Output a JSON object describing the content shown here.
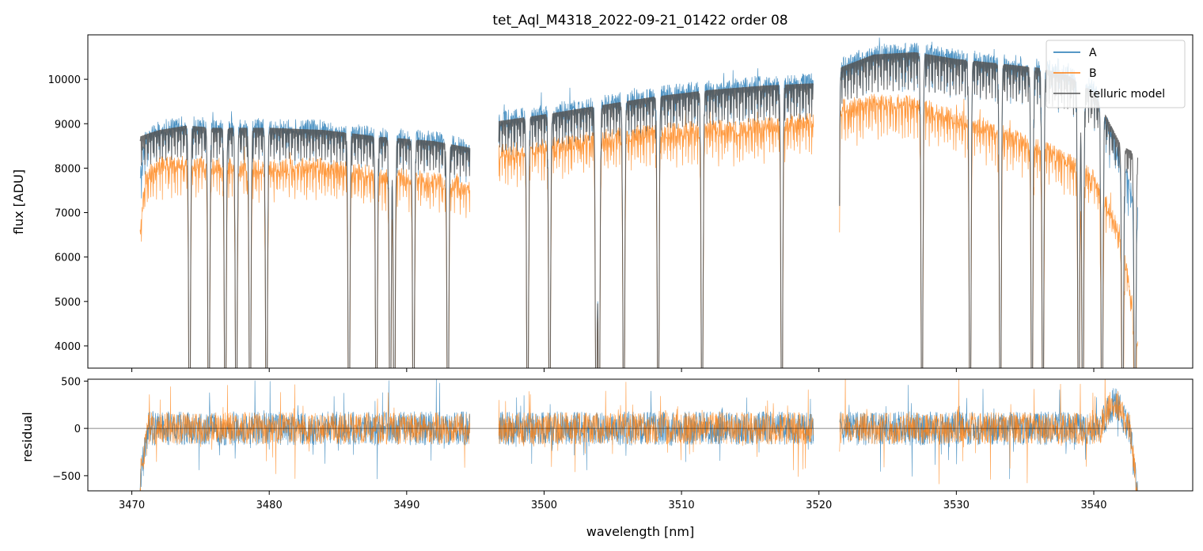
{
  "chart_data": [
    {
      "panel": "top",
      "type": "line",
      "title": "tet_Aql_M4318_2022-09-21_01422  order 08",
      "xlabel": "",
      "ylabel": "flux [ADU]",
      "xlim": [
        3466.8,
        3547.2
      ],
      "ylim": [
        3500,
        11000
      ],
      "yticks": [
        4000,
        5000,
        6000,
        7000,
        8000,
        9000,
        10000
      ],
      "xticks": [
        3470,
        3480,
        3490,
        3500,
        3510,
        3520,
        3530,
        3540
      ],
      "gaps": [
        [
          3494.7,
          3496.6
        ],
        [
          3519.7,
          3521.4
        ]
      ],
      "absorption_lines": [
        3474.2,
        3475.6,
        3476.8,
        3477.6,
        3478.6,
        3479.8,
        3485.8,
        3487.8,
        3488.8,
        3489.1,
        3490.5,
        3493.0,
        3498.8,
        3500.4,
        3503.8,
        3504.0,
        3505.8,
        3508.3,
        3511.5,
        3517.3,
        3521.4,
        3527.5,
        3531.0,
        3533.2,
        3535.5,
        3536.3,
        3538.9,
        3539.2,
        3540.6,
        3542.1,
        3543.0
      ],
      "legend": {
        "position": "top-right",
        "entries": [
          "A",
          "B",
          "telluric model"
        ]
      },
      "series": [
        {
          "name": "A",
          "color": "#1f77b4",
          "segments": [
            {
              "x": [
                3470.6,
                3471.0,
                3472.0,
                3474.0,
                3476.0,
                3480.0,
                3484.0,
                3488.0,
                3492.0,
                3494.6
              ],
              "y": [
                7800,
                8700,
                8900,
                9000,
                8950,
                8950,
                8900,
                8750,
                8650,
                8500
              ]
            },
            {
              "x": [
                3496.7,
                3500.0,
                3504.0,
                3508.0,
                3512.0,
                3516.0,
                3519.6
              ],
              "y": [
                9100,
                9250,
                9450,
                9650,
                9800,
                9900,
                9950
              ]
            },
            {
              "x": [
                3521.5,
                3524.0,
                3527.0,
                3530.0,
                3533.0,
                3536.0,
                3538.0,
                3540.0,
                3542.0,
                3543.2
              ],
              "y": [
                10300,
                10600,
                10650,
                10500,
                10400,
                10300,
                10150,
                9800,
                8200,
                7000
              ]
            }
          ]
        },
        {
          "name": "B",
          "color": "#ff7f0e",
          "segments": [
            {
              "x": [
                3470.6,
                3471.0,
                3472.0,
                3474.0,
                3476.0,
                3480.0,
                3484.0,
                3488.0,
                3492.0,
                3494.6
              ],
              "y": [
                6600,
                7800,
                8100,
                8150,
                8050,
                8050,
                8050,
                7850,
                7750,
                7600
              ]
            },
            {
              "x": [
                3496.7,
                3500.0,
                3504.0,
                3508.0,
                3512.0,
                3516.0,
                3519.6
              ],
              "y": [
                8350,
                8500,
                8700,
                8850,
                8900,
                8950,
                9100
              ]
            },
            {
              "x": [
                3521.5,
                3524.0,
                3527.0,
                3530.0,
                3533.0,
                3536.0,
                3538.0,
                3540.0,
                3542.0,
                3543.2
              ],
              "y": [
                9350,
                9500,
                9450,
                9150,
                8850,
                8500,
                8200,
                7800,
                6500,
                4200
              ]
            }
          ]
        },
        {
          "name": "telluric model",
          "color": "#555555",
          "segments": [
            {
              "x": [
                3470.6,
                3471.0,
                3472.0,
                3474.0,
                3476.0,
                3480.0,
                3484.0,
                3488.0,
                3492.0,
                3494.6
              ],
              "y": [
                8700,
                8750,
                8850,
                8950,
                8900,
                8900,
                8850,
                8700,
                8600,
                8450
              ]
            },
            {
              "x": [
                3496.7,
                3500.0,
                3504.0,
                3508.0,
                3512.0,
                3516.0,
                3519.6
              ],
              "y": [
                9050,
                9200,
                9400,
                9600,
                9750,
                9850,
                9900
              ]
            },
            {
              "x": [
                3521.5,
                3524.0,
                3527.0,
                3530.0,
                3533.0,
                3536.0,
                3538.0,
                3540.0,
                3542.0,
                3543.2
              ],
              "y": [
                10250,
                10550,
                10600,
                10450,
                10350,
                10250,
                10100,
                9700,
                8500,
                8300
              ]
            }
          ]
        }
      ]
    },
    {
      "panel": "bottom",
      "type": "line",
      "title": "",
      "xlabel": "wavelength [nm]",
      "ylabel": "residual",
      "xlim": [
        3466.8,
        3547.2
      ],
      "ylim": [
        -660,
        520
      ],
      "yticks": [
        -500,
        0,
        500
      ],
      "ytick_labels": [
        "−500",
        "0",
        "500"
      ],
      "xticks": [
        3470,
        3480,
        3490,
        3500,
        3510,
        3520,
        3530,
        3540
      ],
      "zero_line": true,
      "series": [
        {
          "name": "A",
          "color": "#1f77b4",
          "noise_amplitude": 180
        },
        {
          "name": "B",
          "color": "#ff7f0e",
          "noise_amplitude": 170
        }
      ]
    }
  ]
}
